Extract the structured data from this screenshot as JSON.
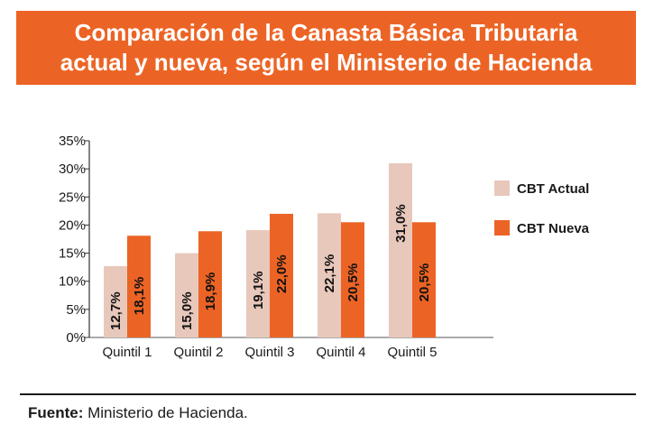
{
  "header": {
    "title_line1": "Comparación de la Canasta Básica Tributaria",
    "title_line2": "actual y nueva, según el Ministerio de Hacienda"
  },
  "colors": {
    "banner": "#ec6425",
    "actual": "#e8c8bb",
    "nueva": "#ec6425"
  },
  "chart_data": {
    "type": "bar",
    "categories": [
      "Quintil 1",
      "Quintil 2",
      "Quintil 3",
      "Quintil 4",
      "Quintil 5"
    ],
    "series": [
      {
        "name": "CBT Actual",
        "values": [
          12.7,
          15.0,
          19.1,
          22.1,
          31.0
        ],
        "labels": [
          "12,7%",
          "15,0%",
          "19,1%",
          "22,1%",
          "31,0%"
        ]
      },
      {
        "name": "CBT Nueva",
        "values": [
          18.1,
          18.9,
          22.0,
          20.5,
          20.5
        ],
        "labels": [
          "18,1%",
          "18,9%",
          "22,0%",
          "20,5%",
          "20,5%"
        ]
      }
    ],
    "yticks": [
      "0%",
      "5%",
      "10%",
      "15%",
      "20%",
      "25%",
      "30%",
      "35%"
    ],
    "ylim": [
      0,
      35
    ],
    "legend_position": "right"
  },
  "footer": {
    "source_label": "Fuente:",
    "source_text": " Ministerio de Hacienda."
  }
}
